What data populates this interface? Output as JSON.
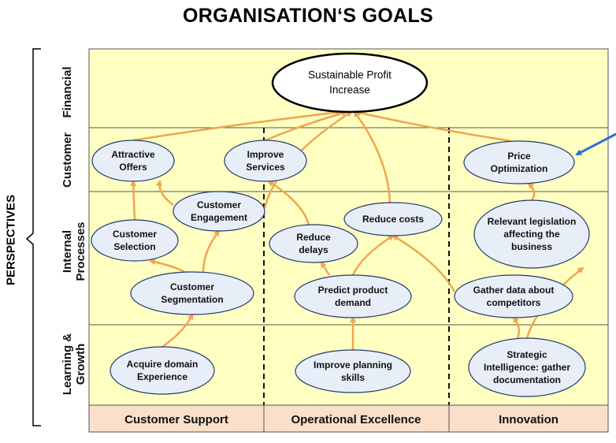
{
  "title": "ORGANISATION‘S GOALS",
  "perspectives_label": "PERSPECTIVES",
  "rows": [
    {
      "id": "financial",
      "label": [
        "Financial"
      ]
    },
    {
      "id": "customer",
      "label": [
        "Customer"
      ]
    },
    {
      "id": "internal",
      "label": [
        "Internal",
        "Processes"
      ]
    },
    {
      "id": "learning",
      "label": [
        "Learning &",
        "Growth"
      ]
    }
  ],
  "columns": [
    "Customer Support",
    "Operational Excellence",
    "Innovation"
  ],
  "colors": {
    "grid_fill": "#ffffc2",
    "column_header_fill": "#fadfca",
    "arrow": "#f0a54e",
    "node_fill": "#e8eef8",
    "node_stroke": "#1f3b6e",
    "pointer": "#2e6fd3"
  },
  "nodes": [
    {
      "id": "profit",
      "lines": [
        "Sustainable Profit",
        "Increase"
      ]
    },
    {
      "id": "offers",
      "lines": [
        "Attractive",
        "Offers"
      ]
    },
    {
      "id": "services",
      "lines": [
        "Improve",
        "Services"
      ]
    },
    {
      "id": "price",
      "lines": [
        "Price",
        "Optimization"
      ]
    },
    {
      "id": "engagement",
      "lines": [
        "Customer",
        "Engagement"
      ]
    },
    {
      "id": "selection",
      "lines": [
        "Customer",
        "Selection"
      ]
    },
    {
      "id": "segmentation",
      "lines": [
        "Customer",
        "Segmentation"
      ]
    },
    {
      "id": "delays",
      "lines": [
        "Reduce",
        "delays"
      ]
    },
    {
      "id": "costs",
      "lines": [
        "Reduce costs"
      ]
    },
    {
      "id": "predict",
      "lines": [
        "Predict product",
        "demand"
      ]
    },
    {
      "id": "legislation",
      "lines": [
        "Relevant legislation",
        "affecting the",
        "business"
      ]
    },
    {
      "id": "gather",
      "lines": [
        "Gather data about",
        "competitors"
      ]
    },
    {
      "id": "domain",
      "lines": [
        "Acquire domain",
        "Experience"
      ]
    },
    {
      "id": "planning",
      "lines": [
        "Improve planning",
        "skills"
      ]
    },
    {
      "id": "strategic",
      "lines": [
        "Strategic",
        "Intelligence: gather",
        "documentation"
      ]
    }
  ],
  "links": [
    [
      "offers",
      "profit"
    ],
    [
      "services",
      "profit"
    ],
    [
      "price",
      "profit"
    ],
    [
      "engagement",
      "profit"
    ],
    [
      "costs",
      "profit"
    ],
    [
      "selection",
      "offers"
    ],
    [
      "engagement",
      "offers"
    ],
    [
      "segmentation",
      "selection"
    ],
    [
      "segmentation",
      "engagement"
    ],
    [
      "domain",
      "segmentation"
    ],
    [
      "delays",
      "services"
    ],
    [
      "predict",
      "delays"
    ],
    [
      "predict",
      "costs"
    ],
    [
      "gather",
      "costs"
    ],
    [
      "planning",
      "predict"
    ],
    [
      "legislation",
      "price"
    ],
    [
      "strategic",
      "legislation"
    ],
    [
      "strategic",
      "gather"
    ]
  ]
}
